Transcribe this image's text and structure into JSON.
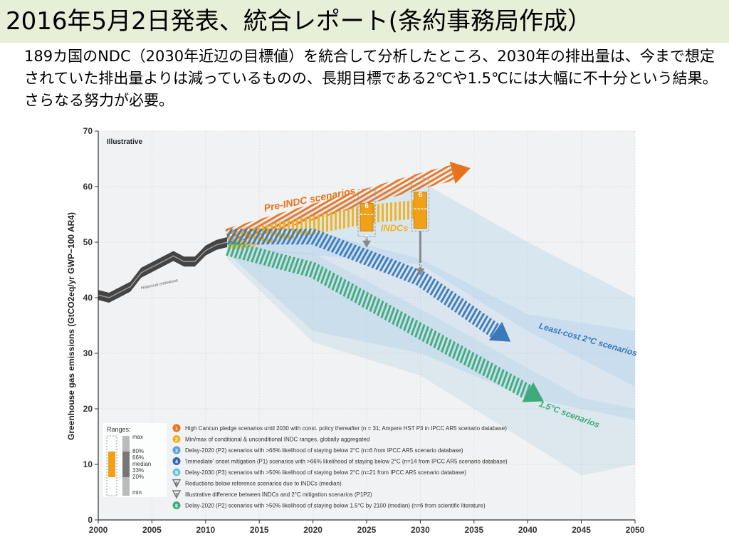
{
  "slide": {
    "title": "2016年5月2日発表、統合レポート(条約事務局作成）",
    "description": "189カ国のNDC（2030年近辺の目標値）を統合して分析したところ、2030年の排出量は、今まで想定されていた排出量よりは減っているものの、長期目標である2℃や1.5℃には大幅に不十分という結果。さらなる努力が必要。"
  },
  "chart_data": {
    "type": "line",
    "corner_label": "Illustrative",
    "ylabel": "Greenhouse gas emissions (GtCO2eq/yr GWP−100 AR4)",
    "xlim": [
      2000,
      2050
    ],
    "ylim": [
      0,
      70
    ],
    "x_ticks": [
      2000,
      2005,
      2010,
      2015,
      2020,
      2025,
      2030,
      2035,
      2040,
      2045,
      2050
    ],
    "y_ticks": [
      0,
      10,
      20,
      30,
      40,
      50,
      60,
      70
    ],
    "grid": true,
    "historical": {
      "label": "Historical emissions",
      "x": [
        2000,
        2001,
        2002,
        2003,
        2004,
        2005,
        2006,
        2007,
        2008,
        2009,
        2010,
        2011,
        2012
      ],
      "y": [
        40.5,
        40,
        41,
        42,
        44.5,
        45.5,
        46.5,
        47.5,
        46.5,
        46.5,
        48.5,
        49.5,
        50
      ]
    },
    "series": [
      {
        "name": "Pre-INDC scenarios",
        "color": "#e8731f",
        "x": [
          2012,
          2030,
          2033
        ],
        "y": [
          51,
          61,
          62.5
        ]
      },
      {
        "name": "INDCs",
        "color": "#f2b01e",
        "x": [
          2012,
          2025,
          2030
        ],
        "y": [
          50,
          55,
          56
        ]
      },
      {
        "name": "Least-cost 2°C scenarios",
        "color": "#3a7ab8",
        "x": [
          2012,
          2020,
          2030,
          2037
        ],
        "y": [
          51,
          51,
          43.5,
          34
        ]
      },
      {
        "name": "1.5°C scenarios",
        "color": "#3daa7d",
        "x": [
          2012,
          2020,
          2030,
          2040
        ],
        "y": [
          49,
          45,
          34,
          23
        ]
      }
    ],
    "indc_boxes": [
      {
        "label": "6",
        "x": 2025,
        "min": 51,
        "max": 59.5,
        "p20": 52,
        "p80": 57,
        "median": 55
      },
      {
        "label": "6",
        "x": 2030,
        "min": 52,
        "max": 61.5,
        "p20": 52.5,
        "p80": 59,
        "median": 56
      }
    ],
    "arrows_down": [
      {
        "label": "7",
        "x": 2025,
        "from": 51,
        "to": 49
      },
      {
        "label": "7",
        "x": 2030,
        "from": 52,
        "to": 44
      }
    ],
    "ranges_key": {
      "title": "Ranges:",
      "labels": [
        "max",
        "80%",
        "66%",
        "median",
        "33%",
        "20%",
        "min"
      ]
    },
    "legend": [
      {
        "num": "1",
        "color": "#e8731f",
        "text": "High Cancun pledge scenarios until 2030 with const. policy thereafter (n = 31; Ampere HST P3 in IPCC AR5 scenario database)"
      },
      {
        "num": "2",
        "color": "#f2b01e",
        "text": "Min/max of conditional & unconditional INDC ranges, globally aggregated"
      },
      {
        "num": "3",
        "color": "#5aa0d8",
        "text": "Delay-2020 (P2) scenarios with >66% likelihood of staying below 2°C (n=6 from IPCC AR5 scenario database)"
      },
      {
        "num": "4",
        "color": "#2e6aa8",
        "text": "'Immediate' onset mitigation (P1) scenarios with >66% likelihood of staying below 2°C (n=14 from IPCC AR5 scenario database)"
      },
      {
        "num": "5",
        "color": "#6cc4dc",
        "text": "Delay-2030 (P3) scenarios with >50% likelihood of staying below 2°C (n=21 from IPCC AR5 scenario database)"
      },
      {
        "num": "6",
        "color": "#888888",
        "text": "Reductions below reference scenarios due to INDCs (median)"
      },
      {
        "num": "7",
        "color": "#888888",
        "text": "Illustrative difference between INDCs and 2°C mitigation scenarios (P1P2)"
      },
      {
        "num": "8",
        "color": "#3daa7d",
        "text": "Delay-2020 (P2) scenarios with >50% likelihood of staying below 1.5°C by 2100 (median) (n=6 from scientific literature)"
      }
    ]
  }
}
